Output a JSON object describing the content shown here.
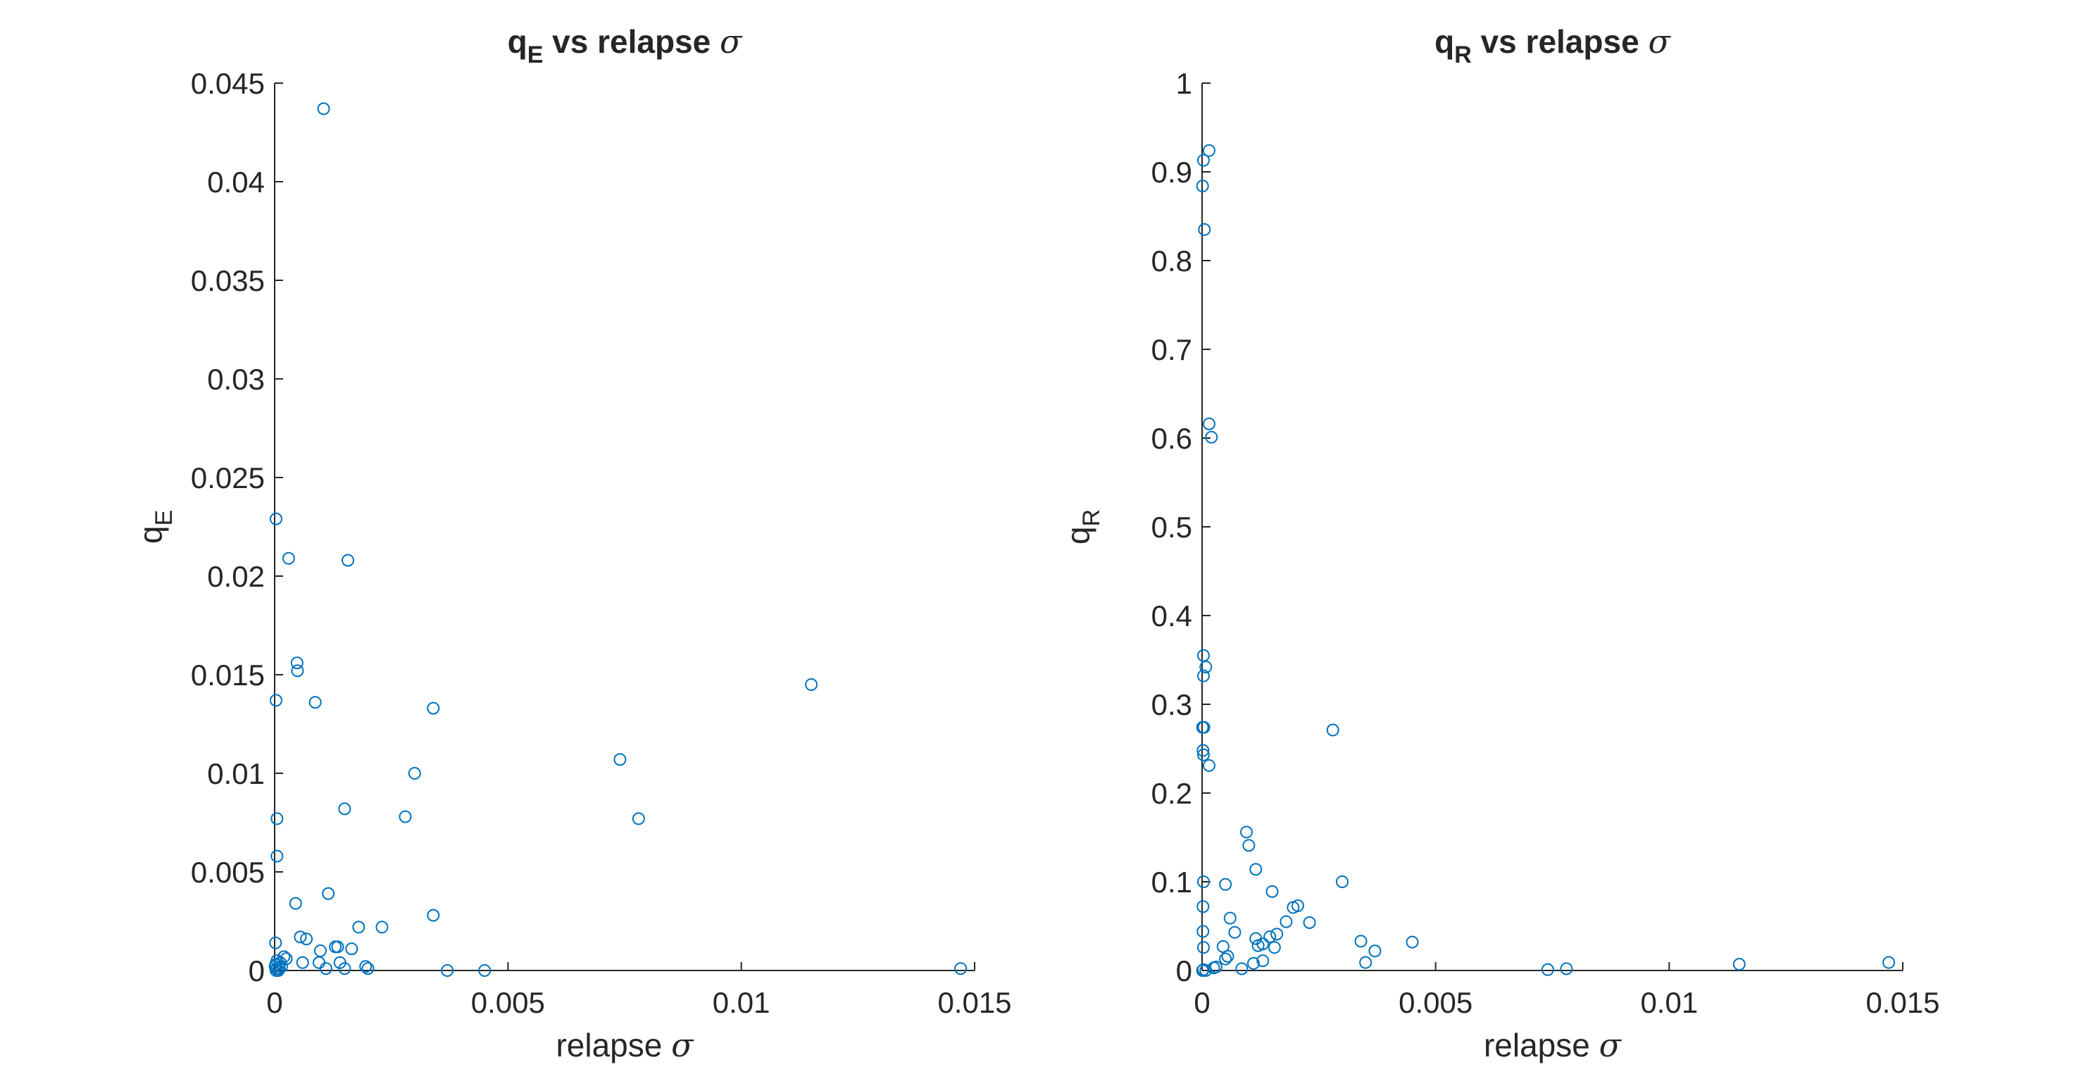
{
  "chart_data": [
    {
      "type": "scatter",
      "title_main": "q",
      "title_sub": "E",
      "title_rest": " vs relapse ",
      "title_sym": "σ",
      "xlabel_text": "relapse ",
      "xlabel_sym": "σ",
      "ylabel_main": "q",
      "ylabel_sub": "E",
      "xlim": [
        0,
        0.015
      ],
      "ylim": [
        0,
        0.045
      ],
      "xticks": [
        0,
        0.005,
        0.01,
        0.015
      ],
      "xtick_labels": [
        "0",
        "0.005",
        "0.01",
        "0.015"
      ],
      "yticks": [
        0,
        0.005,
        0.01,
        0.015,
        0.02,
        0.025,
        0.03,
        0.035,
        0.04,
        0.045
      ],
      "ytick_labels": [
        "0",
        "0.005",
        "0.01",
        "0.015",
        "0.02",
        "0.025",
        "0.03",
        "0.035",
        "0.04",
        "0.045"
      ],
      "marker_color": "#0072BD",
      "points": [
        [
          0.00105,
          0.0437
        ],
        [
          3e-05,
          0.0229
        ],
        [
          0.0003,
          0.0209
        ],
        [
          0.00157,
          0.0208
        ],
        [
          0.00048,
          0.0156
        ],
        [
          0.00049,
          0.0152
        ],
        [
          3e-05,
          0.0137
        ],
        [
          0.00087,
          0.0136
        ],
        [
          0.0034,
          0.0133
        ],
        [
          0.0115,
          0.0145
        ],
        [
          0.0074,
          0.0107
        ],
        [
          0.003,
          0.01
        ],
        [
          0.0015,
          0.0082
        ],
        [
          0.0028,
          0.0078
        ],
        [
          0.0078,
          0.0077
        ],
        [
          5e-05,
          0.0077
        ],
        [
          5e-05,
          0.0058
        ],
        [
          0.00115,
          0.0039
        ],
        [
          0.00045,
          0.0034
        ],
        [
          0.0034,
          0.0028
        ],
        [
          0.0018,
          0.0022
        ],
        [
          0.0023,
          0.0022
        ],
        [
          0.00055,
          0.0017
        ],
        [
          0.00068,
          0.0016
        ],
        [
          2e-05,
          0.0014
        ],
        [
          0.0013,
          0.0012
        ],
        [
          0.00135,
          0.0012
        ],
        [
          0.00165,
          0.0011
        ],
        [
          0.00098,
          0.001
        ],
        [
          0.0002,
          0.0007
        ],
        [
          0.00025,
          0.0006
        ],
        [
          5e-05,
          0.0005
        ],
        [
          0.0006,
          0.0004
        ],
        [
          0.00095,
          0.0004
        ],
        [
          0.0014,
          0.0004
        ],
        [
          0.00012,
          0.0004
        ],
        [
          2e-05,
          0.0003
        ],
        [
          1e-05,
          0.0002
        ],
        [
          4e-05,
          0.0001
        ],
        [
          0.00015,
          0.0002
        ],
        [
          0.0001,
          0.0001
        ],
        [
          0.0011,
          0.0001
        ],
        [
          0.0015,
          0.0001
        ],
        [
          0.00195,
          0.0002
        ],
        [
          0.002,
          0.0001
        ],
        [
          0.0037,
          0.0
        ],
        [
          0.0045,
          0.0
        ],
        [
          0.0147,
          0.0001
        ],
        [
          3e-05,
          0.0
        ],
        [
          8e-05,
          0.0
        ]
      ]
    },
    {
      "type": "scatter",
      "title_main": "q",
      "title_sub": "R",
      "title_rest": " vs relapse ",
      "title_sym": "σ",
      "xlabel_text": "relapse ",
      "xlabel_sym": "σ",
      "ylabel_main": "q",
      "ylabel_sub": "R",
      "xlim": [
        0,
        0.015
      ],
      "ylim": [
        0,
        1
      ],
      "xticks": [
        0,
        0.005,
        0.01,
        0.015
      ],
      "xtick_labels": [
        "0",
        "0.005",
        "0.01",
        "0.015"
      ],
      "yticks": [
        0,
        0.1,
        0.2,
        0.3,
        0.4,
        0.5,
        0.6,
        0.7,
        0.8,
        0.9,
        1
      ],
      "ytick_labels": [
        "0",
        "0.1",
        "0.2",
        "0.3",
        "0.4",
        "0.5",
        "0.6",
        "0.7",
        "0.8",
        "0.9",
        "1"
      ],
      "marker_color": "#0072BD",
      "points": [
        [
          0.00015,
          0.924
        ],
        [
          3e-05,
          0.913
        ],
        [
          1e-05,
          0.884
        ],
        [
          5e-05,
          0.835
        ],
        [
          0.00015,
          0.616
        ],
        [
          0.0002,
          0.601
        ],
        [
          3e-05,
          0.355
        ],
        [
          8e-05,
          0.342
        ],
        [
          3e-05,
          0.332
        ],
        [
          1e-05,
          0.274
        ],
        [
          4e-05,
          0.274
        ],
        [
          0.0028,
          0.271
        ],
        [
          2e-05,
          0.248
        ],
        [
          3e-05,
          0.243
        ],
        [
          0.00015,
          0.231
        ],
        [
          0.00095,
          0.156
        ],
        [
          0.001,
          0.141
        ],
        [
          0.00115,
          0.114
        ],
        [
          3e-05,
          0.1
        ],
        [
          0.0005,
          0.097
        ],
        [
          0.003,
          0.1
        ],
        [
          0.0015,
          0.089
        ],
        [
          2e-05,
          0.072
        ],
        [
          0.00205,
          0.073
        ],
        [
          0.00195,
          0.071
        ],
        [
          0.0006,
          0.059
        ],
        [
          0.0018,
          0.055
        ],
        [
          0.0023,
          0.054
        ],
        [
          2e-05,
          0.044
        ],
        [
          0.0007,
          0.043
        ],
        [
          0.0016,
          0.041
        ],
        [
          0.00145,
          0.038
        ],
        [
          0.00115,
          0.036
        ],
        [
          0.0034,
          0.033
        ],
        [
          0.0045,
          0.032
        ],
        [
          0.0013,
          0.03
        ],
        [
          0.0012,
          0.028
        ],
        [
          0.00045,
          0.027
        ],
        [
          3e-05,
          0.026
        ],
        [
          0.00155,
          0.026
        ],
        [
          0.0037,
          0.022
        ],
        [
          0.00055,
          0.016
        ],
        [
          0.0005,
          0.013
        ],
        [
          0.0013,
          0.011
        ],
        [
          0.0035,
          0.009
        ],
        [
          0.0011,
          0.008
        ],
        [
          0.0115,
          0.007
        ],
        [
          0.0147,
          0.009
        ],
        [
          0.0003,
          0.004
        ],
        [
          0.00025,
          0.003
        ],
        [
          0.00085,
          0.002
        ],
        [
          0.0074,
          0.001
        ],
        [
          0.0078,
          0.002
        ],
        [
          1e-05,
          0.0
        ],
        [
          3e-05,
          0.001
        ],
        [
          8e-05,
          0.0
        ]
      ]
    }
  ]
}
